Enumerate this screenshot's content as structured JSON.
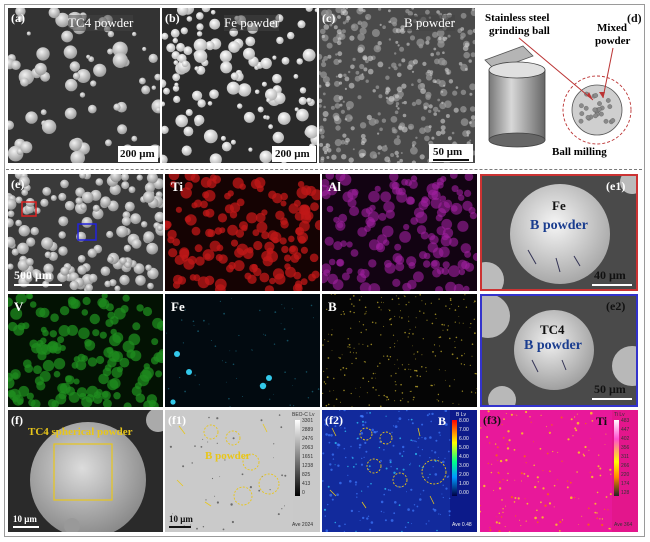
{
  "row1": {
    "a": {
      "label": "(a)",
      "title": "TC4 powder",
      "scale": "200 μm"
    },
    "b": {
      "label": "(b)",
      "title": "Fe powder",
      "scale": "200 μm"
    },
    "c": {
      "label": "(c)",
      "title": "B powder",
      "scale": "50 μm"
    },
    "d": {
      "label": "(d)",
      "ball_label": "Stainless steel grinding ball",
      "ball_line1": "Stainless steel",
      "ball_line2": "grinding ball",
      "mixed_line1": "Mixed",
      "mixed_line2": "powder",
      "milling": "Ball milling"
    }
  },
  "row2": {
    "e": {
      "label": "(e)",
      "scale": "500 μm"
    },
    "ti": {
      "label": "Ti",
      "color": "#c01818"
    },
    "al": {
      "label": "Al",
      "color": "#a020a0"
    },
    "e1": {
      "label": "(e1)",
      "element": "Fe",
      "note": "B powder",
      "scale": "40 μm"
    }
  },
  "row3": {
    "v": {
      "label": "V",
      "color": "#1f8c1f"
    },
    "fe": {
      "label": "Fe",
      "color": "#33c9ea"
    },
    "b": {
      "label": "B",
      "color": "#b8a22a"
    },
    "e2": {
      "label": "(e2)",
      "element": "TC4",
      "note": "B powder",
      "scale": "50 μm"
    }
  },
  "row4": {
    "f": {
      "label": "(f)",
      "title": "TC4 spherical powder",
      "scale": "10 μm"
    },
    "f1": {
      "label": "(f1)",
      "note": "B powder",
      "scale": "10 μm",
      "bar_title": "BEO-C Lv",
      "ticks": [
        "3301",
        "2889",
        "2476",
        "2063",
        "1651",
        "1238",
        "825",
        "413",
        "0"
      ],
      "footer": "Ave 2024"
    },
    "f2": {
      "label": "(f2)",
      "element": "B",
      "bar_title": "B Lv",
      "ticks": [
        "8.00",
        "7.00",
        "6.00",
        "5.00",
        "4.00",
        "3.00",
        "2.00",
        "1.00",
        "0.00"
      ],
      "footer": "Ave 0.48"
    },
    "f3": {
      "label": "(f3)",
      "element": "Ti",
      "bar_title": "Ti Lv",
      "ticks": [
        "483",
        "447",
        "402",
        "356",
        "311",
        "266",
        "220",
        "174",
        "128"
      ],
      "footer": "Ave 364"
    }
  }
}
